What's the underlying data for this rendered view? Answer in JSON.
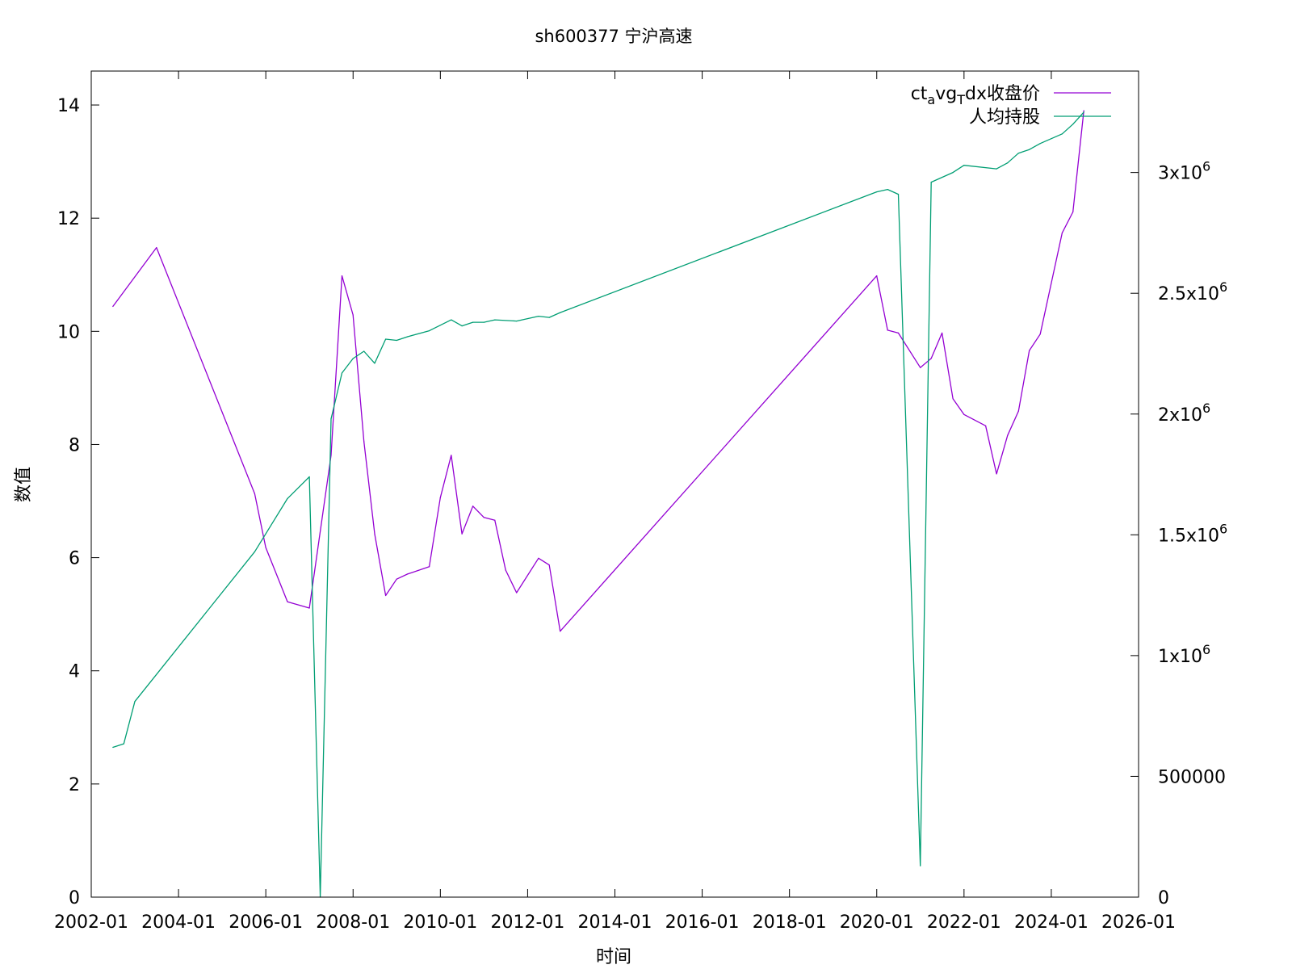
{
  "chart_data": {
    "type": "line",
    "title": "sh600377 宁沪高速",
    "xlabel": "时间",
    "ylabel": "数值",
    "y2label": "",
    "xlim": [
      "2002-01",
      "2026-01"
    ],
    "ylim": [
      0,
      14.6
    ],
    "y2lim": [
      0,
      3420000
    ],
    "grid": false,
    "legend_position": "top-right",
    "x_tick_labels": [
      "2002-01",
      "2004-01",
      "2006-01",
      "2008-01",
      "2010-01",
      "2012-01",
      "2014-01",
      "2016-01",
      "2018-01",
      "2020-01",
      "2022-01",
      "2024-01",
      "2026-01"
    ],
    "y_tick_labels": [
      "0",
      "2",
      "4",
      "6",
      "8",
      "10",
      "12",
      "14"
    ],
    "y2_ticks": [
      {
        "value": 0,
        "mantissa": "0",
        "exp": ""
      },
      {
        "value": 500000,
        "mantissa": "500000",
        "exp": ""
      },
      {
        "value": 1000000,
        "mantissa": "1x10",
        "exp": "6"
      },
      {
        "value": 1500000,
        "mantissa": "1.5x10",
        "exp": "6"
      },
      {
        "value": 2000000,
        "mantissa": "2x10",
        "exp": "6"
      },
      {
        "value": 2500000,
        "mantissa": "2.5x10",
        "exp": "6"
      },
      {
        "value": 3000000,
        "mantissa": "3x10",
        "exp": "6"
      }
    ],
    "series": [
      {
        "name": "ct_avg_Tdx收盘价",
        "legend_parts": {
          "a": "ct",
          "sub1": "a",
          "b": "vg",
          "sub2": "T",
          "c": "dx收盘价"
        },
        "axis": "y1",
        "color": "#9400d3",
        "x": [
          "2002-06-30",
          "2003-06-30",
          "2005-09-30",
          "2005-12-31",
          "2006-06-30",
          "2006-12-31",
          "2007-06-30",
          "2007-09-30",
          "2007-12-31",
          "2008-03-31",
          "2008-06-30",
          "2008-09-30",
          "2008-12-31",
          "2009-03-31",
          "2009-09-30",
          "2009-12-31",
          "2010-03-31",
          "2010-06-30",
          "2010-09-30",
          "2010-12-31",
          "2011-03-31",
          "2011-06-30",
          "2011-09-30",
          "2012-03-31",
          "2012-06-30",
          "2012-09-30",
          "2019-12-31",
          "2020-03-31",
          "2020-06-30",
          "2020-12-31",
          "2021-03-31",
          "2021-06-30",
          "2021-09-30",
          "2021-12-31",
          "2022-06-30",
          "2022-09-30",
          "2022-12-31",
          "2023-03-31",
          "2023-06-30",
          "2023-09-30",
          "2024-03-31",
          "2024-06-30",
          "2024-09-30"
        ],
        "y": [
          10.44,
          11.48,
          7.13,
          6.18,
          5.22,
          5.11,
          7.81,
          10.98,
          10.29,
          8.05,
          6.42,
          5.33,
          5.62,
          5.71,
          5.84,
          7.06,
          7.81,
          6.42,
          6.91,
          6.71,
          6.66,
          5.78,
          5.38,
          5.99,
          5.87,
          4.7,
          10.98,
          10.02,
          9.97,
          9.36,
          9.52,
          9.97,
          8.81,
          8.53,
          8.33,
          7.48,
          8.16,
          8.59,
          9.66,
          9.95,
          11.74,
          12.11,
          13.9
        ]
      },
      {
        "name": "人均持股",
        "axis": "y2",
        "color": "#009e73",
        "x": [
          "2002-06-30",
          "2002-09-30",
          "2002-12-31",
          "2005-09-30",
          "2006-06-30",
          "2006-12-31",
          "2007-03-31",
          "2007-06-30",
          "2007-09-30",
          "2007-12-31",
          "2008-03-31",
          "2008-06-30",
          "2008-09-30",
          "2008-12-31",
          "2009-03-31",
          "2009-09-30",
          "2010-03-31",
          "2010-06-30",
          "2010-09-30",
          "2010-12-31",
          "2011-03-31",
          "2011-09-30",
          "2012-03-31",
          "2012-06-30",
          "2012-09-30",
          "2019-12-31",
          "2020-03-31",
          "2020-06-30",
          "2020-12-31",
          "2021-03-31",
          "2021-09-30",
          "2021-12-31",
          "2022-09-30",
          "2022-12-31",
          "2023-03-31",
          "2023-06-30",
          "2023-09-30",
          "2024-03-31",
          "2024-06-30",
          "2024-09-30"
        ],
        "y": [
          620000,
          635000,
          810000,
          1430000,
          1650000,
          1740000,
          0,
          1980000,
          2170000,
          2230000,
          2260000,
          2210000,
          2310000,
          2305000,
          2320000,
          2345000,
          2390000,
          2365000,
          2380000,
          2380000,
          2390000,
          2385000,
          2405000,
          2400000,
          2420000,
          2920000,
          2930000,
          2910000,
          130000,
          2960000,
          3000000,
          3030000,
          3015000,
          3040000,
          3080000,
          3095000,
          3120000,
          3160000,
          3200000,
          3250000
        ]
      }
    ]
  }
}
